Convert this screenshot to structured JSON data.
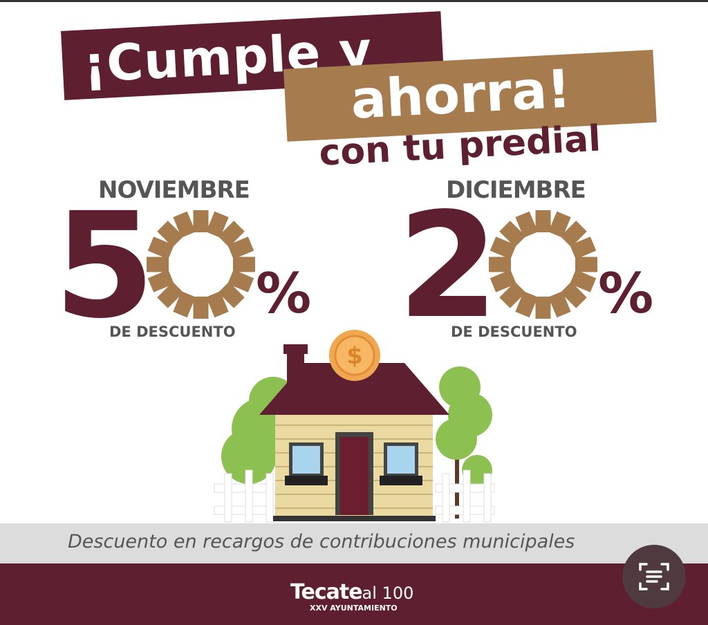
{
  "headline": {
    "line1": "¡Cumple y",
    "line2": "ahorra!",
    "line3": "con tu predial"
  },
  "offers": [
    {
      "month": "NOVIEMBRE",
      "digit": "5",
      "percent_value": "50",
      "percent_sign": "%",
      "label": "DE DESCUENTO"
    },
    {
      "month": "DICIEMBRE",
      "digit": "2",
      "percent_value": "20",
      "percent_sign": "%",
      "label": "DE DESCUENTO"
    }
  ],
  "footer_note": "Descuento en recargos de contribuciones municipales",
  "logo": {
    "name": "Tecate",
    "suffix": "al 100",
    "subtitle": "XXV AYUNTAMIENTO"
  },
  "icons": {
    "coin": "dollar-coin-icon",
    "lens": "text-scan-icon"
  },
  "colors": {
    "maroon": "#5e1f30",
    "gold": "#a67c4e",
    "gray_text": "#555555",
    "band": "#dcdcdc"
  }
}
